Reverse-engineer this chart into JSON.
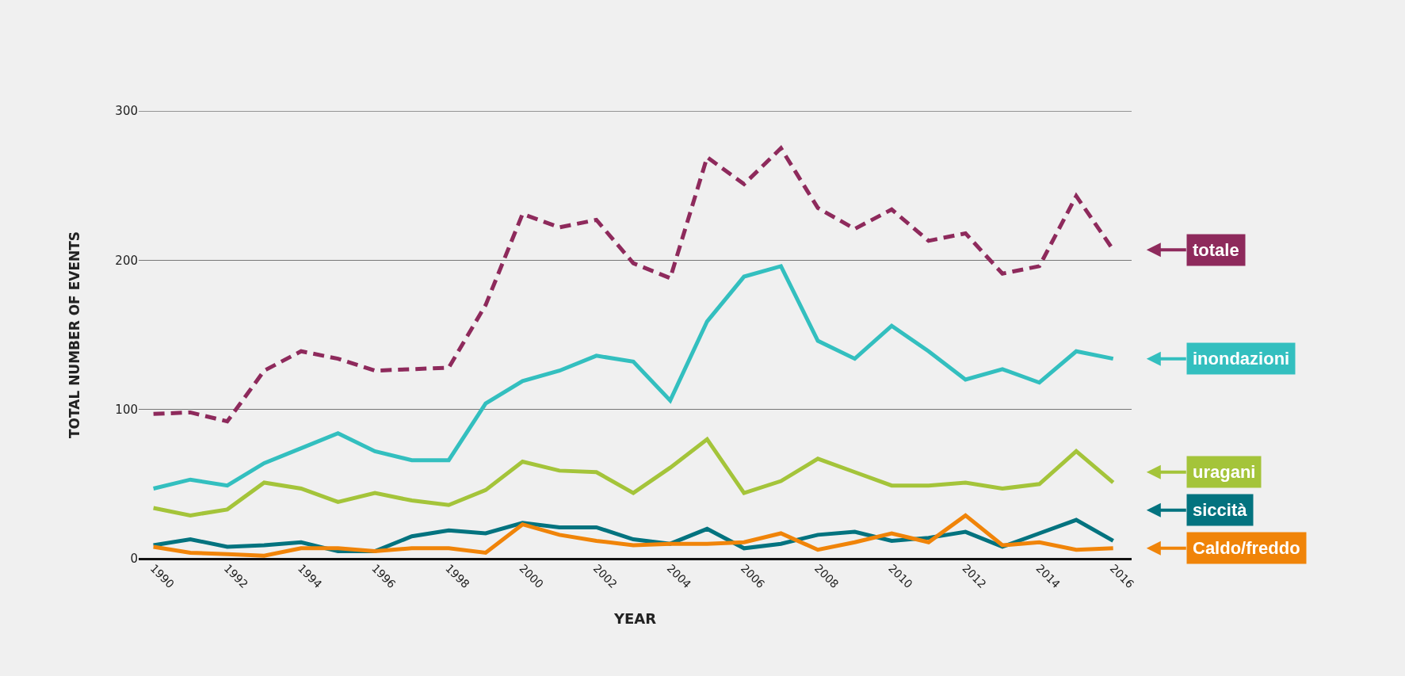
{
  "chart_data": {
    "type": "line",
    "xlabel": "YEAR",
    "ylabel": "TOTAL NUMBER OF EVENTS",
    "x": [
      1990,
      1991,
      1992,
      1993,
      1994,
      1995,
      1996,
      1997,
      1998,
      1999,
      2000,
      2001,
      2002,
      2003,
      2004,
      2005,
      2006,
      2007,
      2008,
      2009,
      2010,
      2011,
      2012,
      2013,
      2014,
      2015,
      2016
    ],
    "xlim": [
      1989.6,
      2016.5
    ],
    "xticks": [
      1990,
      1992,
      1994,
      1996,
      1998,
      2000,
      2002,
      2004,
      2006,
      2008,
      2010,
      2012,
      2014,
      2016
    ],
    "ylim": [
      0,
      300
    ],
    "yticks": [
      0,
      100,
      200,
      300
    ],
    "grid": "y",
    "legend": "right",
    "marker": "none",
    "series": [
      {
        "name": "totale",
        "color": "#8e2a5c",
        "line_style": "dashed",
        "values": [
          97,
          98,
          92,
          126,
          139,
          134,
          126,
          127,
          128,
          170,
          231,
          222,
          227,
          198,
          188,
          269,
          251,
          275,
          235,
          221,
          234,
          213,
          218,
          191,
          196,
          243,
          207
        ]
      },
      {
        "name": "inondazioni",
        "color": "#33bfbf",
        "line_style": "solid",
        "values": [
          47,
          53,
          49,
          64,
          74,
          84,
          72,
          66,
          66,
          104,
          119,
          126,
          136,
          132,
          106,
          159,
          189,
          196,
          146,
          134,
          156,
          139,
          120,
          127,
          118,
          139,
          134
        ]
      },
      {
        "name": "uragani",
        "color": "#a4c43a",
        "line_style": "solid",
        "values": [
          34,
          29,
          33,
          51,
          47,
          38,
          44,
          39,
          36,
          46,
          65,
          59,
          58,
          44,
          61,
          80,
          44,
          52,
          67,
          58,
          49,
          49,
          51,
          47,
          50,
          72,
          51
        ]
      },
      {
        "name": "siccità",
        "color": "#03737f",
        "line_style": "solid",
        "values": [
          9,
          13,
          8,
          9,
          11,
          5,
          5,
          15,
          19,
          17,
          24,
          21,
          21,
          13,
          10,
          20,
          7,
          10,
          16,
          18,
          12,
          14,
          18,
          8,
          17,
          26,
          12
        ]
      },
      {
        "name": "Caldo/freddo",
        "color": "#f08409",
        "line_style": "solid",
        "values": [
          8,
          4,
          3,
          2,
          7,
          7,
          5,
          7,
          7,
          4,
          23,
          16,
          12,
          9,
          10,
          10,
          11,
          17,
          6,
          11,
          17,
          11,
          29,
          9,
          11,
          6,
          7
        ]
      }
    ]
  }
}
